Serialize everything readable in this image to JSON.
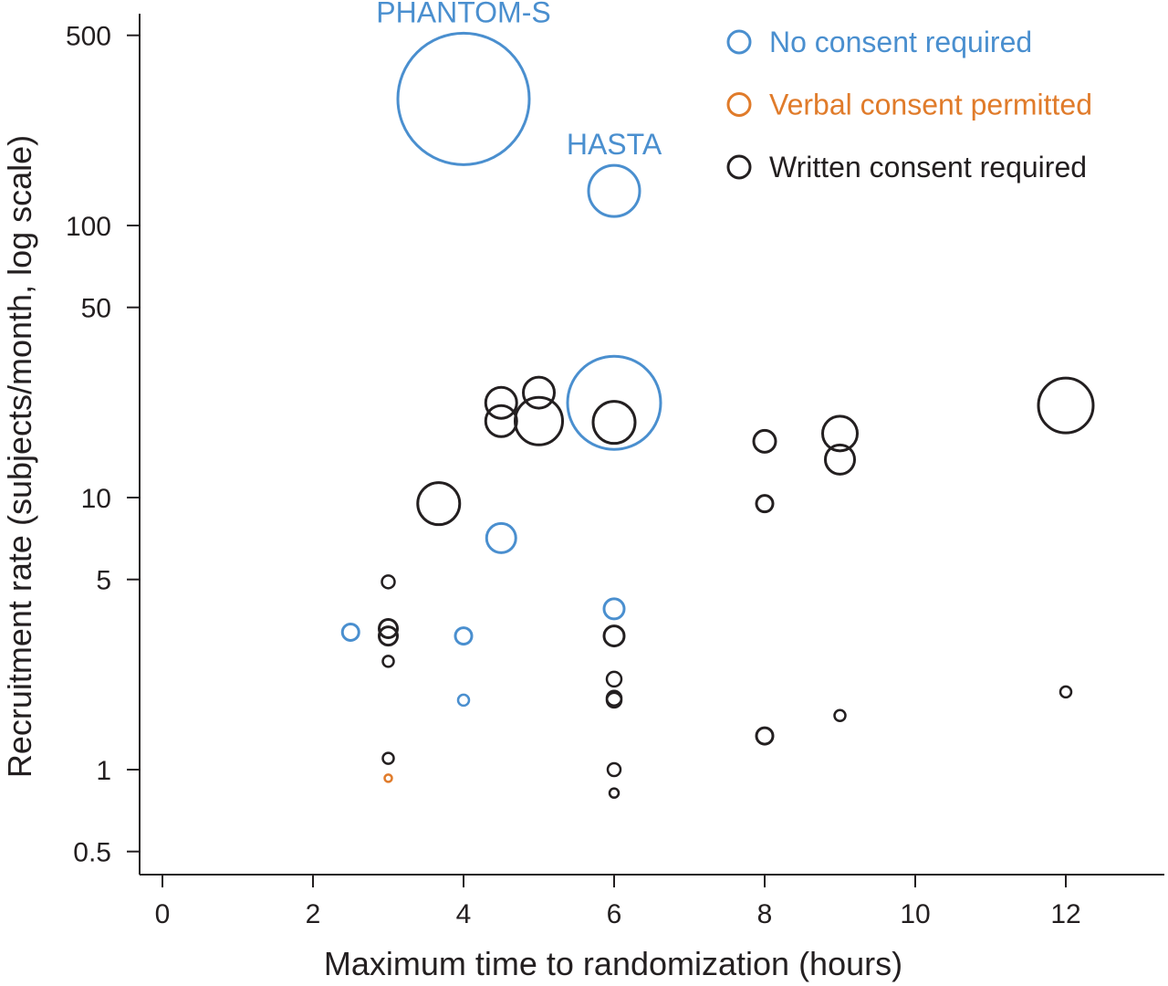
{
  "chart_data": {
    "type": "scatter",
    "subtype": "bubble",
    "title": "",
    "xlabel": "Maximum time to randomization (hours)",
    "ylabel": "Recruitment rate (subjects/month, log scale)",
    "xlim": [
      -0.3,
      13.2
    ],
    "ylim": [
      0.4,
      600
    ],
    "yscale": "log",
    "xticks": [
      0,
      2,
      4,
      6,
      8,
      10,
      12
    ],
    "xtick_labels": [
      "0",
      "2",
      "4",
      "6",
      "8",
      "10",
      "12"
    ],
    "yticks": [
      0.5,
      1,
      5,
      10,
      50,
      100,
      500
    ],
    "ytick_labels": [
      "0.5",
      "1",
      "5",
      "10",
      "50",
      "100",
      "500"
    ],
    "grid": false,
    "legend_position": "top-right",
    "series": [
      {
        "name": "No consent required",
        "color": "#4a8fcf",
        "points": [
          {
            "x": 4,
            "y": 292,
            "size": 72,
            "label": "PHANTOM-S"
          },
          {
            "x": 6,
            "y": 134,
            "size": 28,
            "label": "HASTA"
          },
          {
            "x": 6,
            "y": 22.3,
            "size": 51
          },
          {
            "x": 4.5,
            "y": 7.1,
            "size": 16
          },
          {
            "x": 6,
            "y": 3.9,
            "size": 11
          },
          {
            "x": 2.5,
            "y": 3.2,
            "size": 9
          },
          {
            "x": 4,
            "y": 3.1,
            "size": 9
          },
          {
            "x": 4,
            "y": 1.8,
            "size": 6
          }
        ]
      },
      {
        "name": "Verbal consent permitted",
        "color": "#e07b2a",
        "points": [
          {
            "x": 3,
            "y": 0.93,
            "size": 4
          }
        ]
      },
      {
        "name": "Written consent required",
        "color": "#231f20",
        "points": [
          {
            "x": 3.67,
            "y": 9.5,
            "size": 23
          },
          {
            "x": 4.5,
            "y": 22.3,
            "size": 17
          },
          {
            "x": 4.5,
            "y": 19.1,
            "size": 17
          },
          {
            "x": 5,
            "y": 24.3,
            "size": 17
          },
          {
            "x": 5,
            "y": 19.1,
            "size": 26
          },
          {
            "x": 6,
            "y": 18.9,
            "size": 23
          },
          {
            "x": 8,
            "y": 16.1,
            "size": 12
          },
          {
            "x": 8,
            "y": 9.5,
            "size": 9
          },
          {
            "x": 9,
            "y": 17.2,
            "size": 19
          },
          {
            "x": 9,
            "y": 13.8,
            "size": 16
          },
          {
            "x": 12,
            "y": 21.8,
            "size": 30
          },
          {
            "x": 3,
            "y": 4.9,
            "size": 7
          },
          {
            "x": 3,
            "y": 3.3,
            "size": 10
          },
          {
            "x": 3,
            "y": 3.1,
            "size": 10
          },
          {
            "x": 3,
            "y": 2.5,
            "size": 6
          },
          {
            "x": 3,
            "y": 1.1,
            "size": 6
          },
          {
            "x": 6,
            "y": 3.1,
            "size": 11
          },
          {
            "x": 6,
            "y": 2.15,
            "size": 8
          },
          {
            "x": 6,
            "y": 1.83,
            "size": 8
          },
          {
            "x": 6,
            "y": 1.8,
            "size": 8
          },
          {
            "x": 6,
            "y": 1.0,
            "size": 7
          },
          {
            "x": 6,
            "y": 0.82,
            "size": 5
          },
          {
            "x": 8,
            "y": 1.33,
            "size": 9
          },
          {
            "x": 9,
            "y": 1.58,
            "size": 6
          },
          {
            "x": 12,
            "y": 1.93,
            "size": 6
          }
        ]
      }
    ]
  }
}
